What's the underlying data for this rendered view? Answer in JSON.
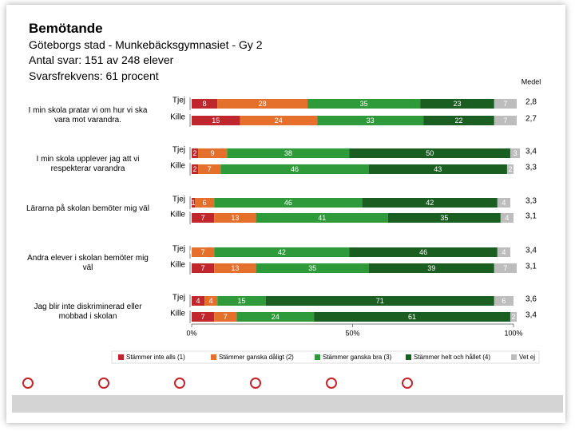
{
  "header": {
    "title": "Bemötande",
    "lines": [
      "Göteborgs stad - Munkebäcksgymnasiet - Gy 2",
      "Antal svar: 151 av 248 elever",
      "Svarsfrekvens: 61 procent"
    ]
  },
  "chart_data": {
    "type": "stacked-barh",
    "groups": [
      "I min skola pratar vi om hur vi ska vara mot varandra.",
      "I min skola upplever jag att vi respekterar varandra",
      "Lärarna på skolan bemöter mig väl",
      "Andra elever i skolan bemöter mig väl",
      "Jag blir inte diskriminerad eller mobbad i skolan"
    ],
    "categories": [
      "Tjej",
      "Kille",
      "Tjej",
      "Kille",
      "Tjej",
      "Kille",
      "Tjej",
      "Kille",
      "Tjej",
      "Kille"
    ],
    "series": [
      {
        "name": "Stämmer inte alls (1)",
        "color": "#c0272d",
        "values": [
          8,
          15,
          2,
          2,
          1,
          7,
          0,
          7,
          4,
          7
        ]
      },
      {
        "name": "Stämmer ganska dåligt (2)",
        "color": "#e4702c",
        "values": [
          28,
          24,
          9,
          7,
          6,
          13,
          7,
          13,
          4,
          7
        ]
      },
      {
        "name": "Stämmer ganska bra (3)",
        "color": "#2e9a3a",
        "values": [
          35,
          33,
          38,
          46,
          46,
          41,
          42,
          35,
          15,
          24
        ]
      },
      {
        "name": "Stämmer helt och hållet (4)",
        "color": "#1b5e22",
        "values": [
          23,
          22,
          50,
          43,
          42,
          35,
          46,
          39,
          71,
          61
        ]
      },
      {
        "name": "Vet ej",
        "color": "#bdbdbd",
        "values": [
          7,
          7,
          3,
          2,
          4,
          4,
          4,
          7,
          6,
          2
        ]
      }
    ],
    "medel_title": "Medel",
    "medel": {
      "values": [
        2.8,
        2.7,
        3.4,
        3.3,
        3.3,
        3.1,
        3.4,
        3.1,
        3.6,
        3.4
      ],
      "value_labels": [
        "2,8",
        "2,7",
        "3,4",
        "3,3",
        "3,3",
        "3,1",
        "3,4",
        "3,1",
        "3,6",
        "3,4"
      ]
    },
    "xlim": [
      0,
      100
    ],
    "xticks": [
      {
        "value": 0,
        "label": "0%"
      },
      {
        "value": 50,
        "label": "50%"
      },
      {
        "value": 100,
        "label": "100%"
      }
    ]
  }
}
